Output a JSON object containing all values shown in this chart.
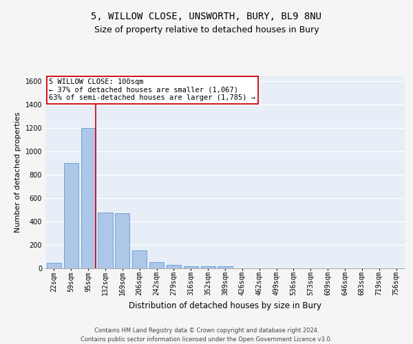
{
  "title1": "5, WILLOW CLOSE, UNSWORTH, BURY, BL9 8NU",
  "title2": "Size of property relative to detached houses in Bury",
  "xlabel": "Distribution of detached houses by size in Bury",
  "ylabel": "Number of detached properties",
  "categories": [
    "22sqm",
    "59sqm",
    "95sqm",
    "132sqm",
    "169sqm",
    "206sqm",
    "242sqm",
    "279sqm",
    "316sqm",
    "352sqm",
    "389sqm",
    "426sqm",
    "462sqm",
    "499sqm",
    "536sqm",
    "573sqm",
    "609sqm",
    "646sqm",
    "683sqm",
    "719sqm",
    "756sqm"
  ],
  "values": [
    50,
    900,
    1200,
    475,
    470,
    155,
    55,
    30,
    20,
    20,
    20,
    0,
    0,
    0,
    0,
    0,
    0,
    0,
    0,
    0,
    0
  ],
  "bar_color": "#aec6e8",
  "bar_edge_color": "#5b9bd5",
  "vline_color": "#cc0000",
  "annotation_text": "5 WILLOW CLOSE: 100sqm\n← 37% of detached houses are smaller (1,067)\n63% of semi-detached houses are larger (1,785) →",
  "annotation_box_color": "#ffffff",
  "annotation_box_edge_color": "#cc0000",
  "ylim": [
    0,
    1650
  ],
  "yticks": [
    0,
    200,
    400,
    600,
    800,
    1000,
    1200,
    1400,
    1600
  ],
  "background_color": "#e8eef7",
  "fig_background_color": "#f5f5f5",
  "grid_color": "#ffffff",
  "footer": "Contains HM Land Registry data © Crown copyright and database right 2024.\nContains public sector information licensed under the Open Government Licence v3.0.",
  "title1_fontsize": 10,
  "title2_fontsize": 9,
  "xlabel_fontsize": 8.5,
  "ylabel_fontsize": 8,
  "tick_fontsize": 7,
  "annotation_fontsize": 7.5,
  "footer_fontsize": 6
}
